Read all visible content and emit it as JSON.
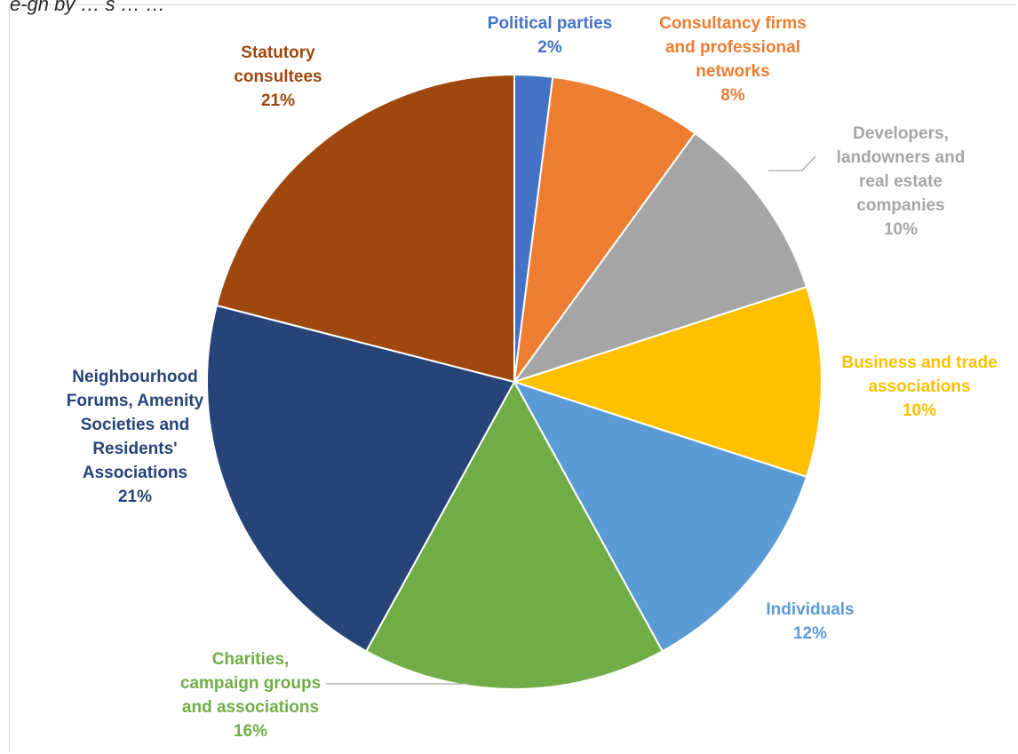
{
  "title_fragment": "e-gn  by  …   s  …   …",
  "chart_data": {
    "type": "pie",
    "title": "",
    "slices": [
      {
        "label": "Political parties",
        "lines": [
          "Political parties",
          "2%"
        ],
        "value": 2,
        "color": "#4472C4"
      },
      {
        "label": "Consultancy firms and professional networks",
        "lines": [
          "Consultancy firms",
          "and professional",
          "networks",
          "8%"
        ],
        "value": 8,
        "color": "#ED7D31"
      },
      {
        "label": "Developers, landowners and real estate companies",
        "lines": [
          "Developers,",
          "landowners and",
          "real estate",
          "companies",
          "10%"
        ],
        "value": 10,
        "color": "#A5A5A5"
      },
      {
        "label": "Business and trade associations",
        "lines": [
          "Business and trade",
          "associations",
          "10%"
        ],
        "value": 10,
        "color": "#FFC000"
      },
      {
        "label": "Individuals",
        "lines": [
          "Individuals",
          "12%"
        ],
        "value": 12,
        "color": "#5B9BD5"
      },
      {
        "label": "Charities, campaign groups and associations",
        "lines": [
          "Charities,",
          "campaign groups",
          "and associations",
          "16%"
        ],
        "value": 16,
        "color": "#70AD47"
      },
      {
        "label": "Neighbourhood Forums, Amenity Societies and Residents' Associations",
        "lines": [
          "Neighbourhood",
          "Forums, Amenity",
          "Societies and",
          "Residents'",
          "Associations",
          "21%"
        ],
        "value": 21,
        "color": "#264478"
      },
      {
        "label": "Statutory consultees",
        "lines": [
          "Statutory",
          "consultees",
          "21%"
        ],
        "value": 21,
        "color": "#9E480E"
      }
    ],
    "legend": "none"
  }
}
